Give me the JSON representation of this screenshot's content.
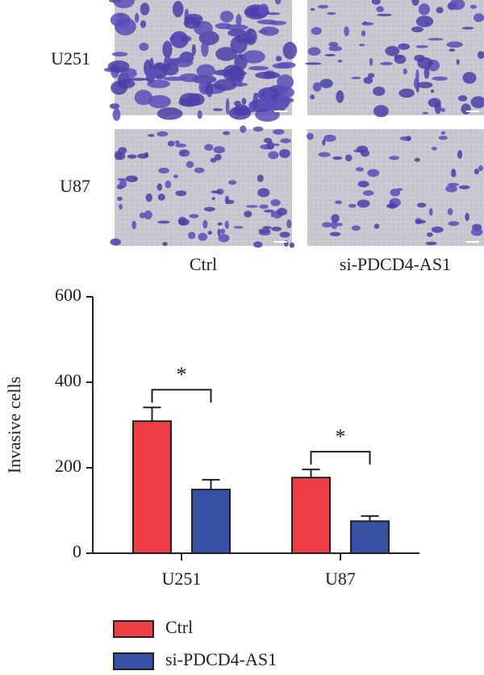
{
  "images": {
    "rows": [
      "U251",
      "U87"
    ],
    "columns": [
      "Ctrl",
      "si-PDCD4-AS1"
    ]
  },
  "chart_data": {
    "type": "bar",
    "y_label": "Invasive cells",
    "categories": [
      "U251",
      "U87"
    ],
    "series": [
      {
        "name": "Ctrl",
        "color": "#ee3d45",
        "values": [
          309,
          177
        ],
        "errors": [
          32,
          19
        ]
      },
      {
        "name": "si-PDCD4-AS1",
        "color": "#3650a3",
        "values": [
          149,
          75
        ],
        "errors": [
          23,
          12
        ]
      }
    ],
    "annotations": [
      "*",
      "*"
    ],
    "ylim": [
      0,
      600
    ],
    "yticks": [
      0,
      200,
      400,
      600
    ]
  }
}
